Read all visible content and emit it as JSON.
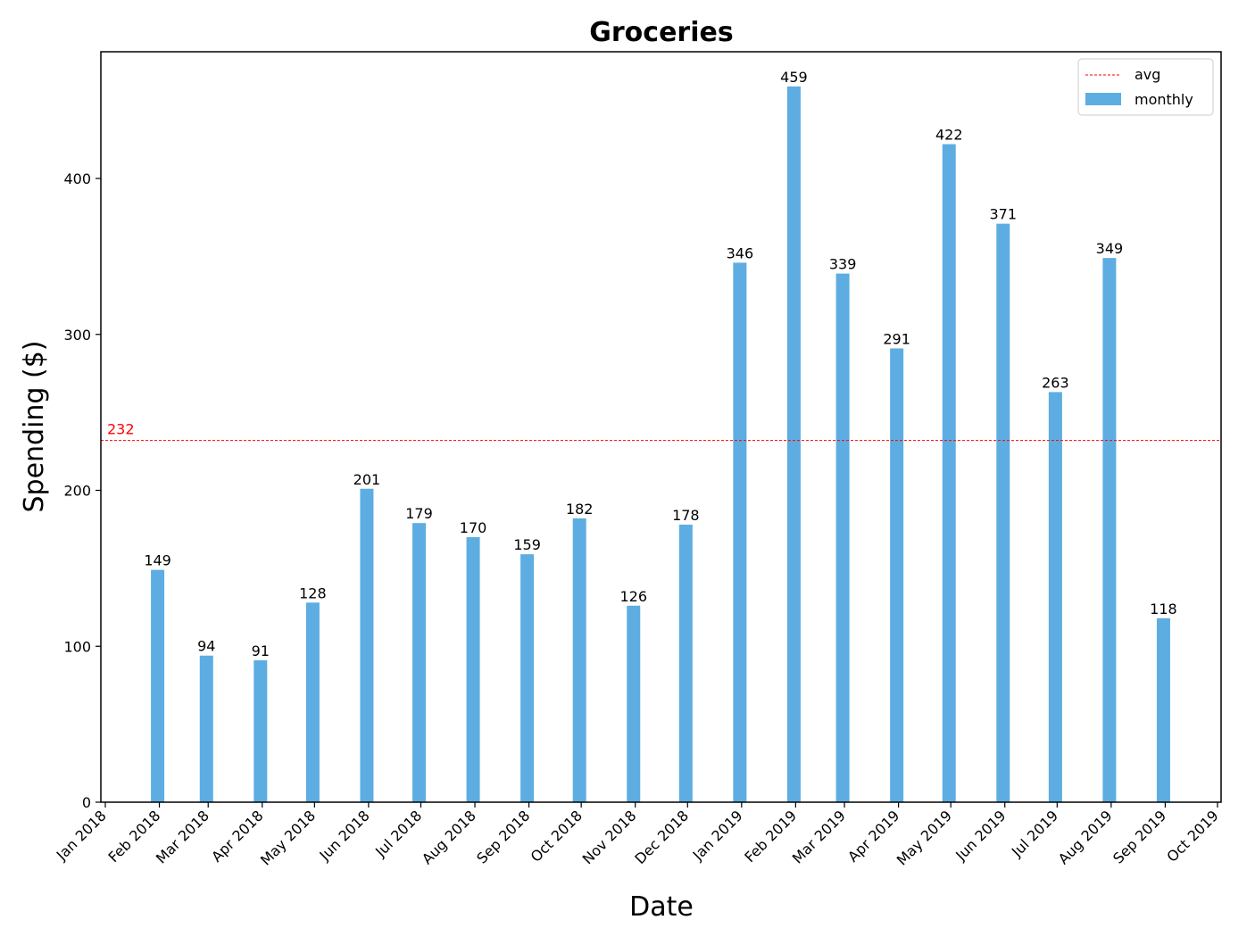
{
  "chart_data": {
    "type": "bar",
    "title": "Groceries",
    "xlabel": "Date",
    "ylabel": "Spending ($)",
    "ylim": [
      0,
      480
    ],
    "yticks": [
      0,
      100,
      200,
      300,
      400
    ],
    "xticks": [
      "Jan 2018",
      "Feb 2018",
      "Mar 2018",
      "Apr 2018",
      "May 2018",
      "Jun 2018",
      "Jul 2018",
      "Aug 2018",
      "Sep 2018",
      "Oct 2018",
      "Nov 2018",
      "Dec 2018",
      "Jan 2019",
      "Feb 2019",
      "Mar 2019",
      "Apr 2019",
      "May 2019",
      "Jun 2019",
      "Jul 2019",
      "Aug 2019",
      "Sep 2019",
      "Oct 2019"
    ],
    "series": [
      {
        "name": "monthly",
        "x": [
          "2018-01-31",
          "2018-02-28",
          "2018-03-31",
          "2018-04-30",
          "2018-05-31",
          "2018-06-30",
          "2018-07-31",
          "2018-08-31",
          "2018-09-30",
          "2018-10-31",
          "2018-11-30",
          "2018-12-31",
          "2019-01-31",
          "2019-02-28",
          "2019-03-31",
          "2019-04-30",
          "2019-05-31",
          "2019-06-30",
          "2019-07-31",
          "2019-08-31",
          "2019-09-30"
        ],
        "values": [
          149,
          94,
          91,
          128,
          201,
          179,
          170,
          159,
          182,
          126,
          178,
          346,
          459,
          339,
          291,
          422,
          371,
          263,
          349,
          118,
          0
        ],
        "color": "#5dade2"
      }
    ],
    "data_labels": [
      "149",
      "94",
      "91",
      "128",
      "201",
      "179",
      "170",
      "159",
      "182",
      "126",
      "178",
      "346",
      "459",
      "339",
      "291",
      "422",
      "371",
      "263",
      "349",
      "118"
    ],
    "reference_line": {
      "name": "avg",
      "value": 232,
      "label": "232",
      "color": "#ff0000",
      "style": "dashed"
    },
    "legend": {
      "placement": "top-right",
      "entries": [
        "avg",
        "monthly"
      ]
    },
    "grid": false
  }
}
